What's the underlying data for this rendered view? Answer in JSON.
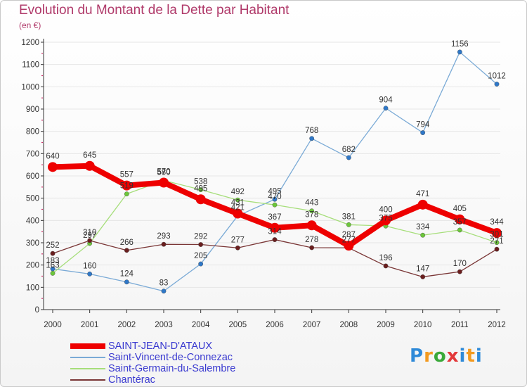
{
  "header": {
    "title": "Evolution du Montant de la Dette par Habitant",
    "subtitle": "(en €)"
  },
  "logo": {
    "text": "Proxiti"
  },
  "colors": {
    "title": "#b03a6a",
    "legend_text": "#3a3ad0",
    "axis": "#333333",
    "tick_mark": "#d0306b",
    "grid": "#e6e6e6"
  },
  "chart_data": {
    "type": "line",
    "title": "Evolution du Montant de la Dette par Habitant",
    "subtitle": "(en €)",
    "xlabel": "",
    "ylabel": "",
    "x": [
      "2000",
      "2001",
      "2002",
      "2003",
      "2004",
      "2005",
      "2006",
      "2007",
      "2008",
      "2009",
      "2010",
      "2011",
      "2012"
    ],
    "ylim": [
      0,
      1200
    ],
    "yticks": [
      0,
      100,
      200,
      300,
      400,
      500,
      600,
      700,
      800,
      900,
      1000,
      1100,
      1200
    ],
    "grid": true,
    "legend_position": "bottom-left",
    "series": [
      {
        "name": "SAINT-JEAN-D'ATAUX",
        "color": "#ee0000",
        "marker_color": "#ee0000",
        "width": 8,
        "marker_size": 7,
        "values": [
          640,
          645,
          557,
          570,
          495,
          431,
          367,
          378,
          287,
          400,
          471,
          405,
          344
        ]
      },
      {
        "name": "Saint-Vincent-de-Connezac",
        "color": "#7aaad6",
        "marker_color": "#2f78c8",
        "width": 1.3,
        "marker_size": 3.2,
        "values": [
          183,
          160,
          124,
          83,
          205,
          421,
          495,
          768,
          682,
          904,
          794,
          1156,
          1012
        ]
      },
      {
        "name": "Saint-Germain-du-Salembre",
        "color": "#a6de7a",
        "marker_color": "#6cc63a",
        "width": 1.3,
        "marker_size": 3.2,
        "values": [
          163,
          297,
          519,
          580,
          538,
          492,
          470,
          443,
          381,
          375,
          334,
          357,
          301
        ]
      },
      {
        "name": "Chantérac",
        "color": "#7a3636",
        "marker_color": "#6a1e1e",
        "width": 1.3,
        "marker_size": 3.2,
        "values": [
          252,
          310,
          266,
          293,
          292,
          277,
          314,
          278,
          277,
          196,
          147,
          170,
          271
        ]
      }
    ]
  }
}
